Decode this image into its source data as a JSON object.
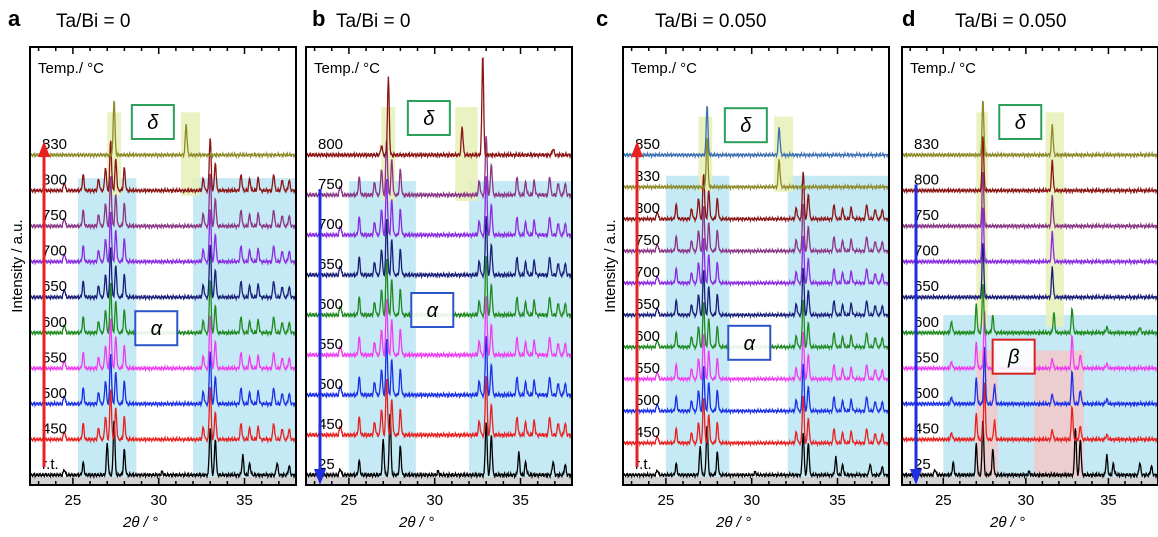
{
  "figure": {
    "x_axis_label": "2θ / °",
    "y_axis_label": "Intensity / a.u.",
    "temp_label": "Temp./ °C",
    "colors": {
      "alpha_region": "#b7e4f2",
      "delta_region": "#e6f0b6",
      "beta_region": "#f6c7c7",
      "alpha_box": "#2c55c8",
      "delta_box": "#2aa05a",
      "beta_box": "#d92020",
      "arrow_heating": "#e8201f",
      "arrow_cooling": "#1f2fe0",
      "baseline": "#d3d3d3"
    },
    "temperature_colors": {
      "r.t.": "#000000",
      "25": "#000000",
      "450": "#e8201f",
      "500": "#1a2fe6",
      "550": "#f03cf0",
      "600": "#1f8a1f",
      "650": "#1b1f7a",
      "700": "#8a2be2",
      "750": "#8a3585",
      "800": "#8b1414",
      "830": "#8c8a28",
      "850": "#3b6fb0"
    }
  },
  "chart_data": [
    {
      "type": "line",
      "panel": "a",
      "title": "Ta/Bi = 0",
      "mode": "heating",
      "xlabel": "2θ / °",
      "ylabel": "Intensity / a.u.",
      "xlim": [
        22.5,
        38.0
      ],
      "xticks": [
        "25",
        "30",
        "35"
      ],
      "temp_label": "Temp./ °C",
      "series": [
        {
          "name": "r.t.",
          "phase": "alpha_rt"
        },
        {
          "name": "450",
          "phase": "alpha"
        },
        {
          "name": "500",
          "phase": "alpha"
        },
        {
          "name": "550",
          "phase": "alpha"
        },
        {
          "name": "600",
          "phase": "alpha"
        },
        {
          "name": "650",
          "phase": "alpha"
        },
        {
          "name": "700",
          "phase": "alpha"
        },
        {
          "name": "750",
          "phase": "alpha"
        },
        {
          "name": "800",
          "phase": "alpha"
        },
        {
          "name": "830",
          "phase": "delta"
        }
      ],
      "regions": [
        {
          "phase": "alpha",
          "x": [
            25.3,
            28.7
          ]
        },
        {
          "phase": "alpha",
          "x": [
            32.0,
            38.0
          ]
        },
        {
          "phase": "delta",
          "x": [
            27.0,
            27.8
          ]
        },
        {
          "phase": "delta",
          "x": [
            31.3,
            32.4
          ]
        }
      ],
      "labels": [
        {
          "text": "δ",
          "phase": "delta"
        },
        {
          "text": "α",
          "phase": "alpha"
        }
      ]
    },
    {
      "type": "line",
      "panel": "b",
      "title": "Ta/Bi = 0",
      "mode": "cooling",
      "xlabel": "2θ / °",
      "ylabel": "",
      "xlim": [
        22.5,
        38.0
      ],
      "xticks": [
        "25",
        "30",
        "35"
      ],
      "temp_label": "Temp./ °C",
      "series": [
        {
          "name": "25",
          "phase": "alpha_rt"
        },
        {
          "name": "450",
          "phase": "alpha"
        },
        {
          "name": "500",
          "phase": "alpha"
        },
        {
          "name": "550",
          "phase": "alpha"
        },
        {
          "name": "600",
          "phase": "alpha"
        },
        {
          "name": "650",
          "phase": "alpha"
        },
        {
          "name": "700",
          "phase": "alpha"
        },
        {
          "name": "750",
          "phase": "alpha"
        },
        {
          "name": "800",
          "phase": "delta_rich"
        }
      ],
      "regions": [
        {
          "phase": "alpha",
          "x": [
            25.0,
            28.9
          ]
        },
        {
          "phase": "alpha",
          "x": [
            32.0,
            38.0
          ]
        },
        {
          "phase": "delta",
          "x": [
            26.9,
            27.7
          ]
        },
        {
          "phase": "delta",
          "x": [
            31.2,
            32.5
          ]
        }
      ],
      "labels": [
        {
          "text": "δ",
          "phase": "delta"
        },
        {
          "text": "α",
          "phase": "alpha"
        }
      ]
    },
    {
      "type": "line",
      "panel": "c",
      "title": "Ta/Bi = 0.050",
      "mode": "heating",
      "xlabel": "2θ / °",
      "ylabel": "Intensity / a.u.",
      "xlim": [
        22.5,
        38.0
      ],
      "xticks": [
        "25",
        "30",
        "35"
      ],
      "temp_label": "Temp./ °C",
      "series": [
        {
          "name": "r.t.",
          "phase": "alpha_rt"
        },
        {
          "name": "450",
          "phase": "alpha"
        },
        {
          "name": "500",
          "phase": "alpha"
        },
        {
          "name": "550",
          "phase": "alpha"
        },
        {
          "name": "600",
          "phase": "alpha"
        },
        {
          "name": "650",
          "phase": "alpha"
        },
        {
          "name": "700",
          "phase": "alpha"
        },
        {
          "name": "750",
          "phase": "alpha"
        },
        {
          "name": "800",
          "phase": "alpha"
        },
        {
          "name": "830",
          "phase": "delta"
        },
        {
          "name": "850",
          "phase": "delta"
        }
      ],
      "regions": [
        {
          "phase": "alpha",
          "x": [
            25.0,
            28.7
          ]
        },
        {
          "phase": "alpha",
          "x": [
            32.1,
            38.0
          ]
        },
        {
          "phase": "delta",
          "x": [
            26.9,
            27.7
          ]
        },
        {
          "phase": "delta",
          "x": [
            31.3,
            32.4
          ]
        }
      ],
      "labels": [
        {
          "text": "δ",
          "phase": "delta"
        },
        {
          "text": "α",
          "phase": "alpha"
        }
      ]
    },
    {
      "type": "line",
      "panel": "d",
      "title": "Ta/Bi = 0.050",
      "mode": "cooling",
      "xlabel": "2θ / °",
      "ylabel": "",
      "xlim": [
        22.5,
        38.0
      ],
      "xticks": [
        "25",
        "30",
        "35"
      ],
      "temp_label": "Temp./ °C",
      "series": [
        {
          "name": "25",
          "phase": "alpha_rt"
        },
        {
          "name": "450",
          "phase": "beta"
        },
        {
          "name": "500",
          "phase": "beta"
        },
        {
          "name": "550",
          "phase": "beta"
        },
        {
          "name": "600",
          "phase": "mixed"
        },
        {
          "name": "650",
          "phase": "delta"
        },
        {
          "name": "700",
          "phase": "delta"
        },
        {
          "name": "750",
          "phase": "delta"
        },
        {
          "name": "800",
          "phase": "delta"
        },
        {
          "name": "830",
          "phase": "delta"
        }
      ],
      "regions": [
        {
          "phase": "alpha",
          "x": [
            25.0,
            38.0
          ]
        },
        {
          "phase": "beta",
          "x": [
            27.0,
            28.3
          ]
        },
        {
          "phase": "beta",
          "x": [
            30.5,
            33.5
          ]
        },
        {
          "phase": "delta",
          "x": [
            27.0,
            27.7
          ]
        },
        {
          "phase": "delta",
          "x": [
            31.2,
            32.3
          ]
        }
      ],
      "labels": [
        {
          "text": "δ",
          "phase": "delta"
        },
        {
          "text": "β",
          "phase": "beta"
        }
      ]
    }
  ]
}
